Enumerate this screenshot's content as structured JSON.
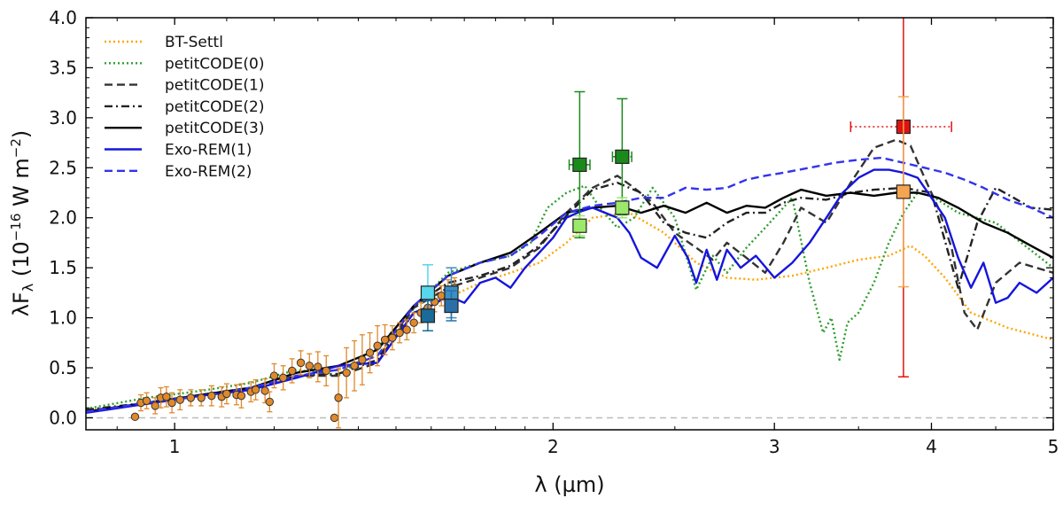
{
  "chart_data": {
    "type": "line",
    "xlabel": "λ (µm)",
    "ylabel": "λF_λ (10^-16 W m^-2)",
    "xscale": "log",
    "xlim": [
      0.85,
      5.0
    ],
    "ylim": [
      -0.12,
      4.0
    ],
    "xticks": [
      {
        "v": 1,
        "label": "1"
      },
      {
        "v": 2,
        "label": "2"
      },
      {
        "v": 3,
        "label": "3"
      },
      {
        "v": 4,
        "label": "4"
      },
      {
        "v": 5,
        "label": "5"
      }
    ],
    "yticks": [
      {
        "v": 0.0,
        "label": "0.0"
      },
      {
        "v": 0.5,
        "label": "0.5"
      },
      {
        "v": 1.0,
        "label": "1.0"
      },
      {
        "v": 1.5,
        "label": "1.5"
      },
      {
        "v": 2.0,
        "label": "2.0"
      },
      {
        "v": 2.5,
        "label": "2.5"
      },
      {
        "v": 3.0,
        "label": "3.0"
      },
      {
        "v": 3.5,
        "label": "3.5"
      },
      {
        "v": 4.0,
        "label": "4.0"
      }
    ],
    "zero_line": {
      "y": 0.0,
      "color": "#bbbbbb"
    },
    "legend_position": "top-left",
    "series": [
      {
        "name": "BT-Settl",
        "color": "#FFA500",
        "dash": "dotted",
        "x": [
          0.85,
          0.95,
          1.05,
          1.15,
          1.25,
          1.35,
          1.45,
          1.55,
          1.65,
          1.75,
          1.85,
          1.95,
          2.05,
          2.15,
          2.3,
          2.45,
          2.6,
          2.75,
          2.9,
          3.1,
          3.3,
          3.5,
          3.7,
          3.85,
          3.95,
          4.1,
          4.3,
          4.6,
          5.0
        ],
        "y": [
          0.07,
          0.15,
          0.23,
          0.3,
          0.42,
          0.48,
          0.62,
          1.05,
          1.2,
          1.35,
          1.45,
          1.55,
          1.75,
          2.0,
          2.05,
          1.85,
          1.55,
          1.4,
          1.38,
          1.42,
          1.5,
          1.58,
          1.62,
          1.72,
          1.62,
          1.4,
          1.05,
          0.9,
          0.78
        ]
      },
      {
        "name": "petitCODE(0)",
        "color": "#2e9e2e",
        "dash": "dotted",
        "x": [
          0.85,
          0.95,
          1.05,
          1.15,
          1.25,
          1.35,
          1.45,
          1.55,
          1.65,
          1.75,
          1.85,
          1.92,
          1.98,
          2.05,
          2.12,
          2.18,
          2.25,
          2.32,
          2.4,
          2.5,
          2.6,
          2.68,
          2.75,
          2.85,
          2.95,
          3.1,
          3.2,
          3.28,
          3.33,
          3.38,
          3.43,
          3.5,
          3.6,
          3.7,
          3.8,
          3.9,
          4.0,
          4.2,
          4.5,
          5.0
        ],
        "y": [
          0.09,
          0.2,
          0.27,
          0.35,
          0.48,
          0.42,
          0.7,
          1.1,
          1.45,
          1.55,
          1.62,
          1.75,
          2.1,
          2.25,
          2.32,
          2.1,
          1.9,
          2.0,
          2.3,
          2.0,
          1.28,
          1.62,
          1.45,
          1.7,
          1.9,
          2.2,
          1.35,
          0.85,
          1.0,
          0.58,
          0.95,
          1.05,
          1.35,
          1.75,
          2.05,
          2.25,
          2.22,
          2.05,
          1.95,
          1.5
        ]
      },
      {
        "name": "petitCODE(1)",
        "color": "#333333",
        "dash": "dashed",
        "x": [
          0.85,
          0.95,
          1.05,
          1.15,
          1.25,
          1.35,
          1.45,
          1.55,
          1.65,
          1.75,
          1.85,
          1.95,
          2.05,
          2.15,
          2.25,
          2.32,
          2.4,
          2.5,
          2.6,
          2.68,
          2.75,
          2.85,
          2.95,
          3.05,
          3.15,
          3.3,
          3.45,
          3.6,
          3.75,
          3.85,
          3.95,
          4.05,
          4.15,
          4.25,
          4.35,
          4.5,
          4.7,
          5.0
        ],
        "y": [
          0.07,
          0.14,
          0.22,
          0.3,
          0.42,
          0.42,
          0.55,
          1.1,
          1.3,
          1.4,
          1.5,
          1.7,
          2.05,
          2.3,
          2.42,
          2.3,
          2.15,
          1.85,
          1.7,
          1.58,
          1.75,
          1.6,
          1.45,
          1.75,
          2.1,
          1.95,
          2.35,
          2.7,
          2.78,
          2.72,
          2.4,
          2.1,
          1.7,
          1.05,
          0.88,
          1.35,
          1.55,
          1.45
        ]
      },
      {
        "name": "petitCODE(2)",
        "color": "#222222",
        "dash": "dashdot",
        "x": [
          0.85,
          0.95,
          1.05,
          1.15,
          1.25,
          1.35,
          1.45,
          1.55,
          1.65,
          1.75,
          1.85,
          1.95,
          2.05,
          2.15,
          2.25,
          2.35,
          2.45,
          2.55,
          2.65,
          2.75,
          2.85,
          2.95,
          3.05,
          3.15,
          3.3,
          3.45,
          3.6,
          3.8,
          4.0,
          4.2,
          4.35,
          4.5,
          4.65,
          4.8,
          5.0
        ],
        "y": [
          0.08,
          0.15,
          0.23,
          0.3,
          0.42,
          0.44,
          0.58,
          1.12,
          1.35,
          1.42,
          1.52,
          1.72,
          2.02,
          2.28,
          2.35,
          2.25,
          1.95,
          1.85,
          1.8,
          1.95,
          2.05,
          2.05,
          2.15,
          2.2,
          2.18,
          2.25,
          2.28,
          2.3,
          2.25,
          1.3,
          1.95,
          2.3,
          2.2,
          2.1,
          2.08
        ]
      },
      {
        "name": "petitCODE(3)",
        "color": "#000000",
        "dash": "solid",
        "x": [
          0.85,
          0.95,
          1.05,
          1.15,
          1.25,
          1.35,
          1.45,
          1.55,
          1.65,
          1.75,
          1.85,
          1.95,
          2.05,
          2.15,
          2.25,
          2.35,
          2.45,
          2.55,
          2.65,
          2.75,
          2.85,
          2.95,
          3.05,
          3.15,
          3.3,
          3.45,
          3.6,
          3.75,
          3.9,
          4.05,
          4.2,
          4.4,
          4.6,
          4.8,
          5.0
        ],
        "y": [
          0.06,
          0.15,
          0.23,
          0.3,
          0.45,
          0.52,
          0.68,
          1.12,
          1.42,
          1.55,
          1.65,
          1.85,
          2.05,
          2.1,
          2.12,
          2.05,
          2.12,
          2.05,
          2.15,
          2.05,
          2.12,
          2.1,
          2.2,
          2.28,
          2.22,
          2.25,
          2.22,
          2.25,
          2.25,
          2.2,
          2.1,
          1.95,
          1.85,
          1.72,
          1.6
        ]
      },
      {
        "name": "Exo-REM(1)",
        "color": "#1515dd",
        "dash": "solid",
        "x": [
          0.85,
          0.95,
          1.05,
          1.15,
          1.25,
          1.35,
          1.45,
          1.55,
          1.6,
          1.65,
          1.7,
          1.75,
          1.8,
          1.85,
          1.9,
          1.95,
          2.0,
          2.05,
          2.1,
          2.15,
          2.2,
          2.25,
          2.3,
          2.35,
          2.42,
          2.5,
          2.56,
          2.6,
          2.65,
          2.7,
          2.75,
          2.82,
          2.9,
          3.0,
          3.1,
          3.2,
          3.3,
          3.4,
          3.5,
          3.6,
          3.7,
          3.8,
          3.9,
          4.0,
          4.1,
          4.2,
          4.3,
          4.4,
          4.5,
          4.6,
          4.7,
          4.85,
          5.0
        ],
        "y": [
          0.05,
          0.14,
          0.22,
          0.28,
          0.4,
          0.52,
          0.55,
          1.05,
          1.12,
          1.22,
          1.15,
          1.35,
          1.4,
          1.3,
          1.5,
          1.65,
          1.8,
          2.0,
          2.06,
          2.1,
          2.05,
          2.0,
          1.85,
          1.6,
          1.5,
          1.82,
          1.6,
          1.35,
          1.68,
          1.38,
          1.68,
          1.5,
          1.62,
          1.4,
          1.55,
          1.75,
          2.0,
          2.25,
          2.4,
          2.48,
          2.48,
          2.45,
          2.4,
          2.2,
          2.0,
          1.6,
          1.3,
          1.55,
          1.15,
          1.2,
          1.35,
          1.25,
          1.4
        ]
      },
      {
        "name": "Exo-REM(2)",
        "color": "#3333ee",
        "dash": "dashed",
        "x": [
          0.85,
          0.95,
          1.05,
          1.15,
          1.25,
          1.35,
          1.45,
          1.55,
          1.65,
          1.75,
          1.85,
          1.95,
          2.05,
          2.15,
          2.25,
          2.35,
          2.45,
          2.55,
          2.65,
          2.75,
          2.85,
          2.95,
          3.05,
          3.2,
          3.35,
          3.5,
          3.65,
          3.8,
          3.95,
          4.1,
          4.25,
          4.4,
          4.6,
          4.8,
          5.0
        ],
        "y": [
          0.06,
          0.15,
          0.22,
          0.3,
          0.42,
          0.48,
          0.62,
          1.12,
          1.42,
          1.55,
          1.62,
          1.82,
          2.05,
          2.12,
          2.15,
          2.2,
          2.2,
          2.3,
          2.28,
          2.3,
          2.38,
          2.42,
          2.45,
          2.5,
          2.55,
          2.58,
          2.6,
          2.55,
          2.5,
          2.45,
          2.38,
          2.3,
          2.18,
          2.1,
          2.0
        ]
      }
    ],
    "photometry": {
      "color": "#e0892b",
      "edge": "#333333",
      "points": [
        {
          "x": 0.93,
          "y": 0.01,
          "e": 0.0
        },
        {
          "x": 0.94,
          "y": 0.15,
          "e": 0.08
        },
        {
          "x": 0.95,
          "y": 0.17,
          "e": 0.08
        },
        {
          "x": 0.965,
          "y": 0.12,
          "e": 0.08
        },
        {
          "x": 0.975,
          "y": 0.2,
          "e": 0.1
        },
        {
          "x": 0.985,
          "y": 0.21,
          "e": 0.1
        },
        {
          "x": 0.995,
          "y": 0.15,
          "e": 0.1
        },
        {
          "x": 1.01,
          "y": 0.18,
          "e": 0.1
        },
        {
          "x": 1.03,
          "y": 0.2,
          "e": 0.08
        },
        {
          "x": 1.05,
          "y": 0.2,
          "e": 0.08
        },
        {
          "x": 1.07,
          "y": 0.22,
          "e": 0.1
        },
        {
          "x": 1.09,
          "y": 0.21,
          "e": 0.1
        },
        {
          "x": 1.1,
          "y": 0.24,
          "e": 0.1
        },
        {
          "x": 1.12,
          "y": 0.23,
          "e": 0.1
        },
        {
          "x": 1.13,
          "y": 0.22,
          "e": 0.12
        },
        {
          "x": 1.15,
          "y": 0.26,
          "e": 0.1
        },
        {
          "x": 1.16,
          "y": 0.28,
          "e": 0.1
        },
        {
          "x": 1.18,
          "y": 0.27,
          "e": 0.12
        },
        {
          "x": 1.19,
          "y": 0.16,
          "e": 0.1
        },
        {
          "x": 1.2,
          "y": 0.42,
          "e": 0.12
        },
        {
          "x": 1.22,
          "y": 0.4,
          "e": 0.12
        },
        {
          "x": 1.24,
          "y": 0.47,
          "e": 0.12
        },
        {
          "x": 1.26,
          "y": 0.55,
          "e": 0.12
        },
        {
          "x": 1.28,
          "y": 0.52,
          "e": 0.12
        },
        {
          "x": 1.3,
          "y": 0.51,
          "e": 0.15
        },
        {
          "x": 1.32,
          "y": 0.47,
          "e": 0.15
        },
        {
          "x": 1.34,
          "y": 0.0,
          "e": 0.0
        },
        {
          "x": 1.35,
          "y": 0.2,
          "e": 0.3
        },
        {
          "x": 1.37,
          "y": 0.45,
          "e": 0.25
        },
        {
          "x": 1.39,
          "y": 0.52,
          "e": 0.25
        },
        {
          "x": 1.41,
          "y": 0.58,
          "e": 0.25
        },
        {
          "x": 1.43,
          "y": 0.65,
          "e": 0.2
        },
        {
          "x": 1.45,
          "y": 0.72,
          "e": 0.2
        },
        {
          "x": 1.47,
          "y": 0.78,
          "e": 0.15
        },
        {
          "x": 1.49,
          "y": 0.8,
          "e": 0.12
        },
        {
          "x": 1.51,
          "y": 0.85,
          "e": 0.1
        },
        {
          "x": 1.53,
          "y": 0.88,
          "e": 0.1
        },
        {
          "x": 1.55,
          "y": 0.95,
          "e": 0.1
        },
        {
          "x": 1.57,
          "y": 1.05,
          "e": 0.1
        },
        {
          "x": 1.59,
          "y": 1.1,
          "e": 0.1
        },
        {
          "x": 1.61,
          "y": 1.16,
          "e": 0.1
        },
        {
          "x": 1.63,
          "y": 1.22,
          "e": 0.1
        },
        {
          "x": 1.65,
          "y": 1.28,
          "e": 0.1
        },
        {
          "x": 1.67,
          "y": 1.3,
          "e": 0.1
        }
      ]
    },
    "squares": [
      {
        "x": 1.59,
        "y": 1.25,
        "e": 0.28,
        "color": "#57d6ec"
      },
      {
        "x": 1.66,
        "y": 1.25,
        "e": 0.25,
        "color": "#3a8fc4"
      },
      {
        "x": 1.59,
        "y": 1.02,
        "e": 0.15,
        "color": "#1a6a9a"
      },
      {
        "x": 1.66,
        "y": 1.12,
        "e": 0.15,
        "color": "#2a6fa8"
      },
      {
        "x": 2.1,
        "y": 2.53,
        "e": 0.73,
        "xe": 0.04,
        "color": "#1a8a1a"
      },
      {
        "x": 2.27,
        "y": 2.61,
        "e": 0.58,
        "xe": 0.04,
        "color": "#1a8a1a"
      },
      {
        "x": 2.1,
        "y": 1.92,
        "e": 0.1,
        "color": "#9be86a"
      },
      {
        "x": 2.27,
        "y": 2.1,
        "e": 0.1,
        "color": "#9be86a"
      },
      {
        "x": 3.8,
        "y": 2.91,
        "e": 2.5,
        "xe": 0.35,
        "xedash": true,
        "color": "#e11212"
      },
      {
        "x": 3.8,
        "y": 2.26,
        "e": 0.95,
        "color": "#f5a550"
      }
    ]
  }
}
